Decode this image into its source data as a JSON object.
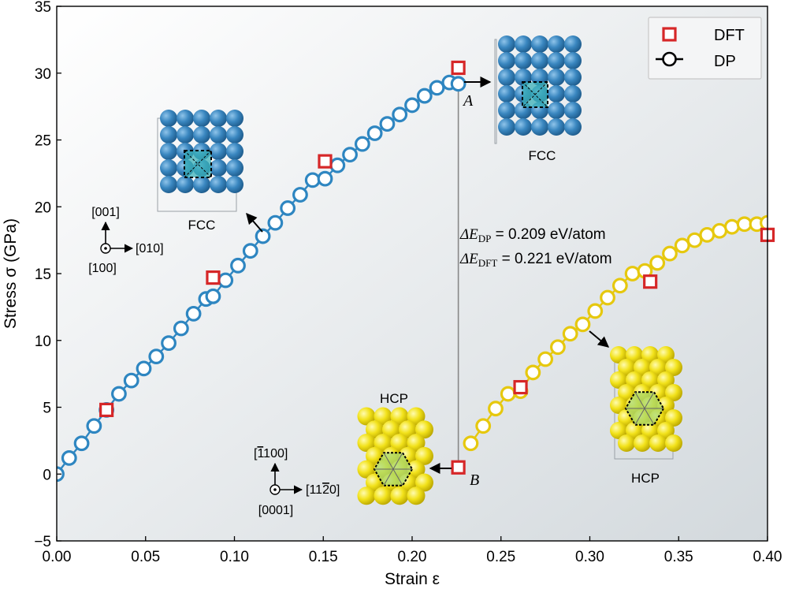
{
  "chart_data": {
    "type": "scatter",
    "xlabel": "Strain ε",
    "ylabel": "Stress σ (GPa)",
    "xlim": [
      0,
      0.4
    ],
    "ylim": [
      -5,
      35
    ],
    "xticks": [
      0,
      0.05,
      0.1,
      0.15,
      0.2,
      0.25,
      0.3,
      0.35,
      0.4
    ],
    "xtick_labels": [
      "0.00",
      "0.05",
      "0.10",
      "0.15",
      "0.20",
      "0.25",
      "0.30",
      "0.35",
      "0.40"
    ],
    "yticks": [
      -5,
      0,
      5,
      10,
      15,
      20,
      25,
      30,
      35
    ],
    "ytick_labels": [
      "−5",
      "0",
      "5",
      "10",
      "15",
      "20",
      "25",
      "30",
      "35"
    ],
    "legend_position": "top-right",
    "series": [
      {
        "name": "DFT",
        "marker": "square",
        "color": "#d62728",
        "points": [
          [
            0.028,
            4.8
          ],
          [
            0.088,
            14.7
          ],
          [
            0.151,
            23.4
          ],
          [
            0.226,
            30.4
          ],
          [
            0.226,
            0.5
          ],
          [
            0.261,
            6.5
          ],
          [
            0.334,
            14.4
          ],
          [
            0.4,
            17.9
          ]
        ]
      },
      {
        "name": "DP",
        "marker": "circle-line",
        "legend_color": "#000000",
        "segments": [
          {
            "phase": "FCC",
            "color": "#2e86c1",
            "points": [
              [
                0.0,
                0.0
              ],
              [
                0.007,
                1.2
              ],
              [
                0.014,
                2.3
              ],
              [
                0.021,
                3.6
              ],
              [
                0.028,
                4.8
              ],
              [
                0.035,
                6.0
              ],
              [
                0.042,
                7.0
              ],
              [
                0.049,
                7.9
              ],
              [
                0.056,
                8.8
              ],
              [
                0.063,
                9.8
              ],
              [
                0.07,
                10.9
              ],
              [
                0.077,
                12.0
              ],
              [
                0.084,
                13.1
              ],
              [
                0.088,
                13.3
              ],
              [
                0.095,
                14.5
              ],
              [
                0.102,
                15.6
              ],
              [
                0.109,
                16.7
              ],
              [
                0.116,
                17.8
              ],
              [
                0.123,
                18.8
              ],
              [
                0.13,
                19.9
              ],
              [
                0.137,
                20.9
              ],
              [
                0.144,
                22.0
              ],
              [
                0.151,
                22.1
              ],
              [
                0.158,
                23.1
              ],
              [
                0.165,
                23.9
              ],
              [
                0.172,
                24.7
              ],
              [
                0.179,
                25.5
              ],
              [
                0.186,
                26.2
              ],
              [
                0.193,
                26.9
              ],
              [
                0.2,
                27.6
              ],
              [
                0.207,
                28.3
              ],
              [
                0.214,
                28.9
              ],
              [
                0.221,
                29.3
              ],
              [
                0.226,
                29.2
              ]
            ]
          },
          {
            "phase": "HCP",
            "color": "#e6c80e",
            "points": [
              [
                0.233,
                2.3
              ],
              [
                0.24,
                3.6
              ],
              [
                0.247,
                4.9
              ],
              [
                0.254,
                6.0
              ],
              [
                0.261,
                6.2
              ],
              [
                0.268,
                7.6
              ],
              [
                0.275,
                8.6
              ],
              [
                0.282,
                9.5
              ],
              [
                0.289,
                10.5
              ],
              [
                0.296,
                11.2
              ],
              [
                0.303,
                12.2
              ],
              [
                0.31,
                13.2
              ],
              [
                0.317,
                14.1
              ],
              [
                0.324,
                15.0
              ],
              [
                0.331,
                15.2
              ],
              [
                0.338,
                15.8
              ],
              [
                0.345,
                16.5
              ],
              [
                0.352,
                17.1
              ],
              [
                0.359,
                17.5
              ],
              [
                0.366,
                17.9
              ],
              [
                0.373,
                18.2
              ],
              [
                0.38,
                18.5
              ],
              [
                0.387,
                18.7
              ],
              [
                0.394,
                18.7
              ],
              [
                0.4,
                18.8
              ]
            ]
          }
        ]
      }
    ],
    "drop_line": {
      "x": 0.226,
      "y_top": 29.2,
      "y_bottom": 0.5
    },
    "annotations": {
      "point_A": "A",
      "point_B": "B",
      "energy_dp_prefix": "ΔE",
      "energy_dp_subscript": "DP",
      "energy_dp_value": " = 0.209 eV/atom",
      "energy_dft_prefix": "ΔE",
      "energy_dft_subscript": "DFT",
      "energy_dft_value": " = 0.221 eV/atom"
    },
    "insets": {
      "fcc_left_label": "FCC",
      "fcc_right_label": "FCC",
      "hcp_left_label": "HCP",
      "hcp_right_label": "HCP"
    },
    "axes_indicators": {
      "fcc": {
        "up": "[001]",
        "right": "[010]",
        "out": "[100]"
      },
      "hcp": {
        "up_bar": "1",
        "up_rest": "100",
        "right_prefix": "[11",
        "right_bar": "2",
        "right_suffix": "0]",
        "out": "[0001]",
        "up_open": "[",
        "up_close": "]"
      }
    },
    "colors": {
      "fcc_atom": "#3a87c0",
      "hcp_atom": "#f2e21a",
      "background_light": "#ffffff",
      "background_dark": "#d4dade"
    }
  }
}
